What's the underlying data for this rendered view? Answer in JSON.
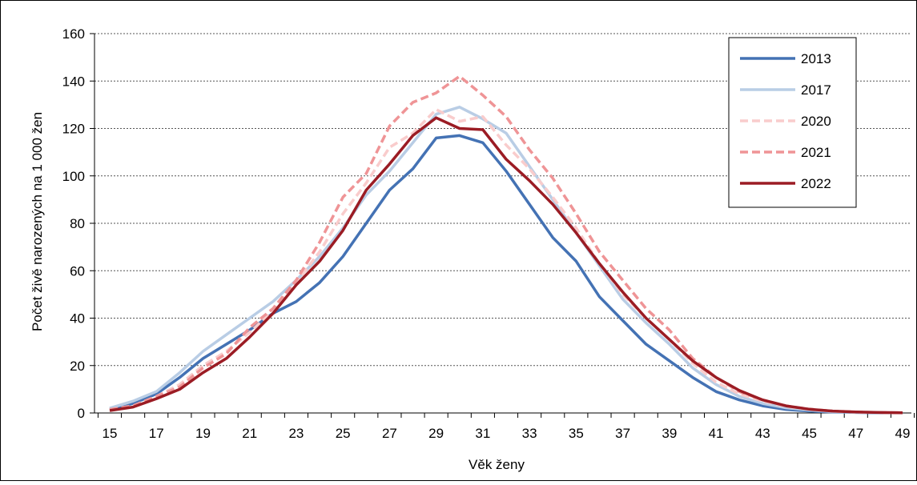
{
  "chart_data": {
    "type": "line",
    "xlabel": "Věk ženy",
    "ylabel": "Počet živě narozených na 1 000 žen",
    "ylim": [
      0,
      160
    ],
    "xlim": [
      15,
      49
    ],
    "yticks": [
      "0",
      "20",
      "40",
      "60",
      "80",
      "100",
      "120",
      "140",
      "160"
    ],
    "xticks": [
      "15",
      "17",
      "19",
      "21",
      "23",
      "25",
      "27",
      "29",
      "31",
      "33",
      "35",
      "37",
      "39",
      "41",
      "43",
      "45",
      "47",
      "49"
    ],
    "grid": "horizontal-dashed",
    "legend_position": "top-right",
    "x": [
      15,
      16,
      17,
      18,
      19,
      20,
      21,
      22,
      23,
      24,
      25,
      26,
      27,
      28,
      29,
      30,
      31,
      32,
      33,
      34,
      35,
      36,
      37,
      38,
      39,
      40,
      41,
      42,
      43,
      44,
      45,
      46,
      47,
      48,
      49
    ],
    "series": [
      {
        "name": "2013",
        "color": "#4472b4",
        "style": "solid",
        "values": [
          1.5,
          4,
          8,
          15,
          23,
          29,
          35,
          42,
          47,
          55,
          66,
          80,
          94,
          103,
          116,
          117,
          114,
          102,
          88,
          74,
          64,
          49,
          39,
          29,
          22,
          15,
          9,
          5.5,
          3,
          1.5,
          0.8,
          0.4,
          0.2,
          0.1,
          0.1
        ]
      },
      {
        "name": "2017",
        "color": "#b9cde5",
        "style": "solid",
        "values": [
          2,
          5,
          9,
          17,
          26,
          33,
          40,
          47,
          56,
          66,
          78,
          92,
          102,
          114,
          126,
          129,
          124,
          118,
          104,
          90,
          76,
          62,
          48,
          38,
          29,
          19,
          12,
          7,
          4,
          2.2,
          1.2,
          0.6,
          0.3,
          0.2,
          0.1
        ]
      },
      {
        "name": "2020",
        "color": "#f9cccc",
        "style": "dashed",
        "values": [
          1.5,
          3,
          7,
          12,
          20,
          26,
          34,
          43,
          55,
          68,
          84,
          97,
          112,
          118,
          128,
          123,
          125,
          113,
          103,
          91,
          78,
          63,
          50,
          40,
          31,
          21,
          13,
          8,
          5,
          2.8,
          1.5,
          0.7,
          0.3,
          0.2,
          0.1
        ]
      },
      {
        "name": "2021",
        "color": "#ef9496",
        "style": "dashed",
        "values": [
          1.5,
          3,
          7,
          11,
          19,
          25,
          36,
          44,
          56,
          72,
          91,
          101,
          121,
          131,
          135,
          142,
          134,
          125,
          111,
          99,
          84,
          68,
          56,
          44,
          35,
          23,
          15,
          9,
          5.5,
          3,
          1.6,
          0.8,
          0.4,
          0.2,
          0.1
        ]
      },
      {
        "name": "2022",
        "color": "#9b1c24",
        "style": "solid",
        "values": [
          1,
          2.5,
          6,
          10,
          17,
          23,
          32,
          42,
          54,
          64,
          77,
          94,
          105,
          117,
          124.5,
          120,
          119.5,
          107,
          98,
          88,
          76,
          63,
          51,
          40,
          31,
          22,
          15,
          9.5,
          5.5,
          3,
          1.6,
          0.8,
          0.4,
          0.2,
          0.1
        ]
      }
    ]
  }
}
